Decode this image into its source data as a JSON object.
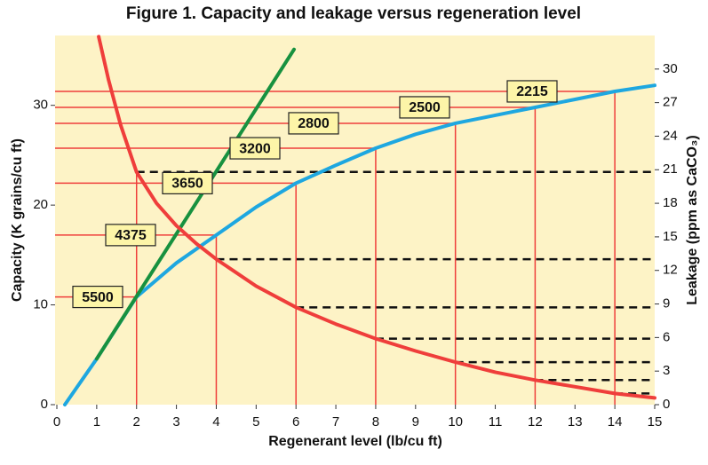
{
  "chart_data": {
    "type": "line",
    "title": "Figure 1.  Capacity and leakage versus regeneration level",
    "x_label": "Regenerant level (lb/cu ft)",
    "y_label": "Capacity (K grains/cu ft)",
    "y2_label": "Leakage (ppm as CaCO₃)",
    "xlim": [
      0,
      15
    ],
    "ylim": [
      0,
      37
    ],
    "y2lim": [
      0,
      33
    ],
    "xticks": [
      0,
      1,
      2,
      3,
      4,
      5,
      6,
      7,
      8,
      9,
      10,
      11,
      12,
      13,
      14,
      15
    ],
    "yticks": [
      0,
      10,
      20,
      30
    ],
    "y2ticks": [
      0,
      3,
      6,
      9,
      12,
      15,
      18,
      21,
      24,
      27,
      30
    ],
    "background": "#fdf3c6",
    "series": [
      {
        "color": "#1ea7e0",
        "x": [
          0.2,
          1,
          2,
          3,
          4,
          5,
          6,
          7,
          8,
          9,
          10,
          11,
          12,
          13,
          14,
          15
        ],
        "values": [
          0,
          4.6,
          10.8,
          14.2,
          17,
          19.8,
          22.2,
          24,
          25.7,
          27.1,
          28.2,
          29,
          29.8,
          30.6,
          31.4,
          32
        ]
      },
      {
        "color": "#17913f",
        "x": [
          1,
          5.95
        ],
        "values": [
          4.6,
          35.6
        ]
      },
      {
        "color": "#ef3e3b",
        "axis": "y2",
        "x": [
          1.05,
          1.3,
          1.6,
          2,
          2.5,
          3,
          3.5,
          4,
          5,
          6,
          7,
          8,
          9,
          10,
          11,
          12,
          13,
          14,
          15
        ],
        "values": [
          32.9,
          29,
          25,
          20.8,
          18,
          16,
          14.4,
          13,
          10.6,
          8.7,
          7.2,
          5.9,
          4.8,
          3.8,
          2.9,
          2.2,
          1.6,
          1.0,
          0.6
        ]
      }
    ],
    "marked_x": [
      2,
      4,
      6,
      8,
      10,
      12,
      14
    ],
    "throughput_labels": [
      5500,
      4375,
      3650,
      3200,
      2800,
      2500,
      2215
    ]
  }
}
